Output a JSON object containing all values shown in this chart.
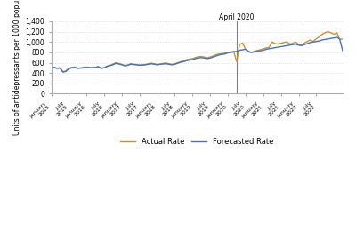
{
  "title": "",
  "ylabel": "Units of antidepressants per 1000 population",
  "xlabel": "",
  "ylim": [
    0,
    1400
  ],
  "yticks": [
    0,
    200,
    400,
    600,
    800,
    1000,
    1200,
    1400
  ],
  "ytick_labels": [
    "0",
    "200",
    "400",
    "600",
    "800",
    "1,000",
    "1,200",
    "1,400"
  ],
  "vline_date_index": 63,
  "vline_label": "April 2020",
  "forecasted_color": "#4472c4",
  "actual_color": "#c8922a",
  "line_width": 1.0,
  "background_color": "#ffffff",
  "legend_labels": [
    "Forecasted Rate",
    "Actual Rate"
  ],
  "xtick_labels": [
    "January 2015",
    "July 2015",
    "January 2016",
    "July 2016",
    "January 2017",
    "July 2017",
    "January 2018",
    "July 2018",
    "January 2019",
    "July 2019",
    "January 2020",
    "July 2020",
    "January 2021",
    "July 2021",
    "January 2022"
  ],
  "forecasted_values": [
    490,
    510,
    490,
    500,
    420,
    430,
    480,
    500,
    510,
    490,
    495,
    500,
    510,
    505,
    500,
    510,
    520,
    490,
    500,
    530,
    545,
    560,
    590,
    575,
    560,
    540,
    550,
    570,
    565,
    560,
    550,
    555,
    560,
    570,
    580,
    570,
    560,
    570,
    575,
    580,
    570,
    560,
    570,
    590,
    610,
    620,
    640,
    650,
    660,
    680,
    690,
    700,
    690,
    680,
    690,
    710,
    730,
    750,
    760,
    770,
    790,
    800,
    810,
    820,
    840,
    850,
    860,
    820,
    800,
    810,
    820,
    830,
    840,
    860,
    870,
    880,
    890,
    900,
    910,
    920,
    930,
    940,
    950,
    960,
    940,
    930,
    950,
    970,
    990,
    1000,
    1010,
    1020,
    1040,
    1050,
    1060,
    1070,
    1080,
    1090,
    1060,
    830
  ],
  "actual_values": [
    500,
    510,
    490,
    500,
    425,
    440,
    490,
    510,
    515,
    495,
    500,
    510,
    515,
    510,
    505,
    510,
    525,
    495,
    505,
    535,
    550,
    575,
    600,
    585,
    565,
    545,
    555,
    580,
    570,
    565,
    555,
    560,
    565,
    580,
    590,
    580,
    565,
    575,
    585,
    595,
    580,
    568,
    578,
    600,
    620,
    635,
    660,
    670,
    680,
    700,
    715,
    720,
    710,
    695,
    710,
    730,
    755,
    770,
    775,
    785,
    800,
    810,
    820,
    620,
    950,
    980,
    860,
    810,
    795,
    820,
    840,
    850,
    870,
    885,
    895,
    1000,
    970,
    960,
    975,
    990,
    1005,
    960,
    975,
    1000,
    950,
    940,
    980,
    1010,
    1040,
    1010,
    1060,
    1100,
    1150,
    1180,
    1200,
    1180,
    1150,
    1180,
    1050,
    1060
  ]
}
